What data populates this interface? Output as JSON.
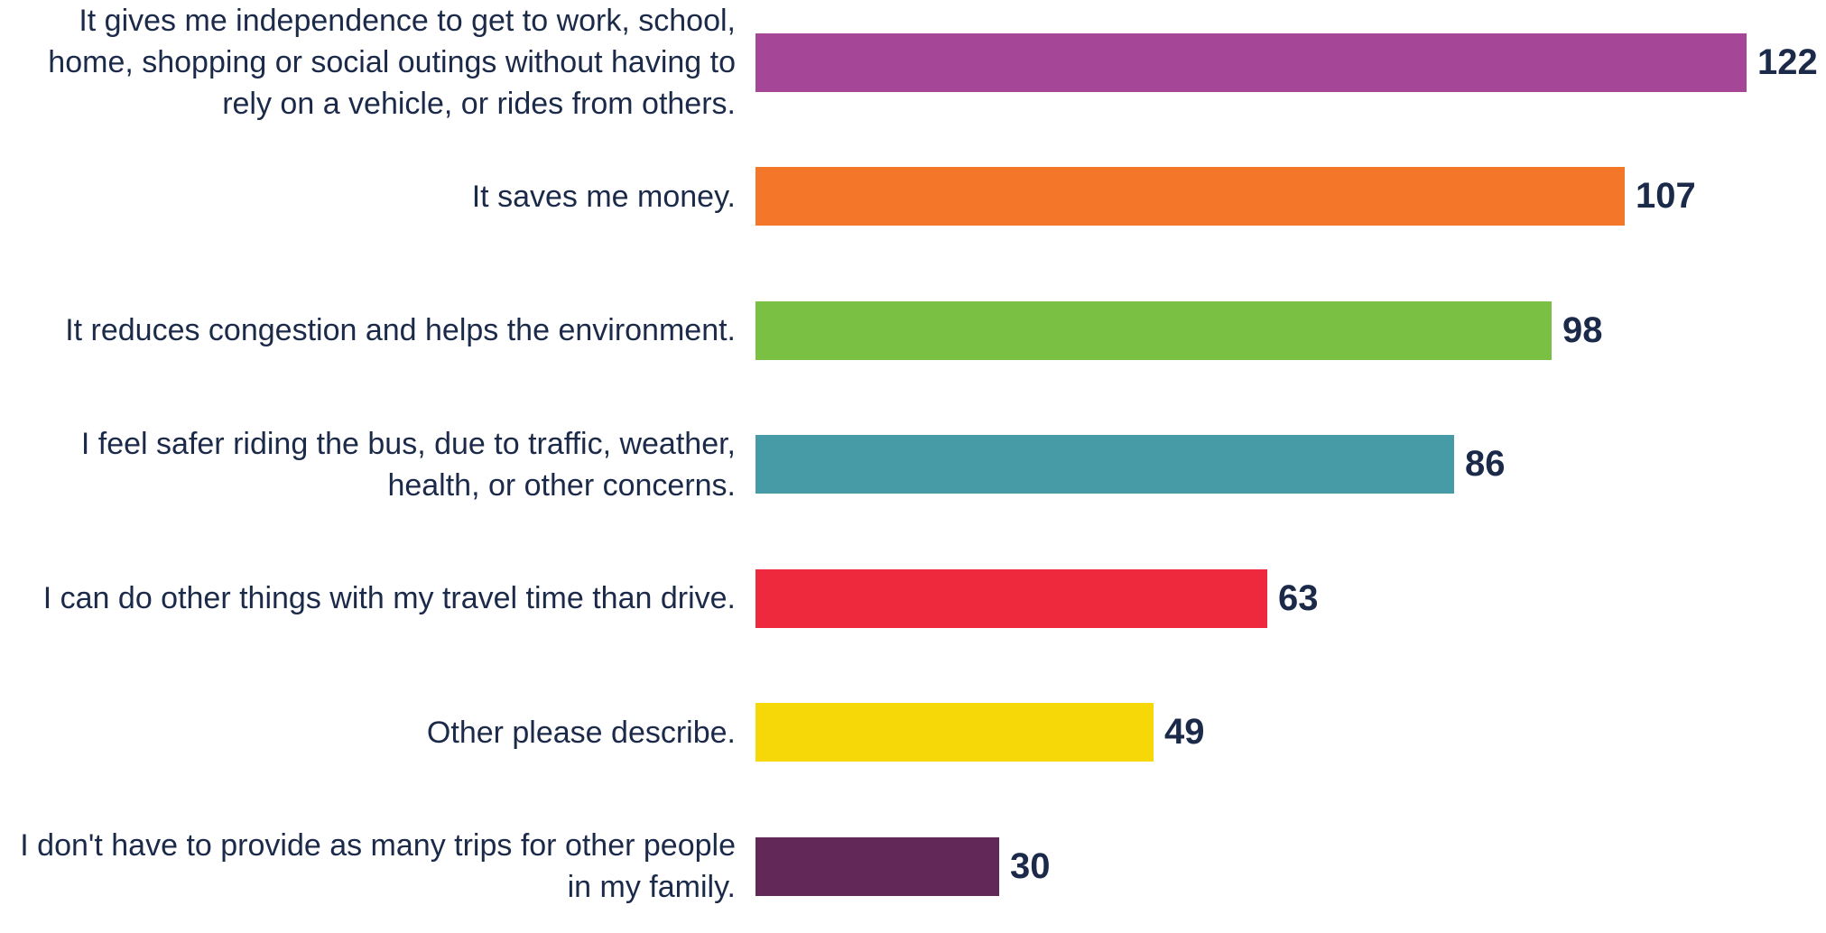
{
  "chart_data": {
    "type": "bar",
    "orientation": "horizontal",
    "categories": [
      "It gives me independence to get to work, school, home, shopping or social outings without having to rely on a vehicle, or rides from others.",
      "It saves me money.",
      "It reduces congestion and helps the environment.",
      "I feel safer riding the bus, due to traffic, weather, health, or other concerns.",
      "I can do other things with my travel time than drive.",
      "Other please describe.",
      "I don't have to provide as many trips for other people in my family."
    ],
    "values": [
      122,
      107,
      98,
      86,
      63,
      49,
      30
    ],
    "colors": [
      "#a64696",
      "#f47628",
      "#7ac143",
      "#479ba6",
      "#ee293d",
      "#f6d808",
      "#622858"
    ],
    "xlim": [
      0,
      122
    ]
  }
}
